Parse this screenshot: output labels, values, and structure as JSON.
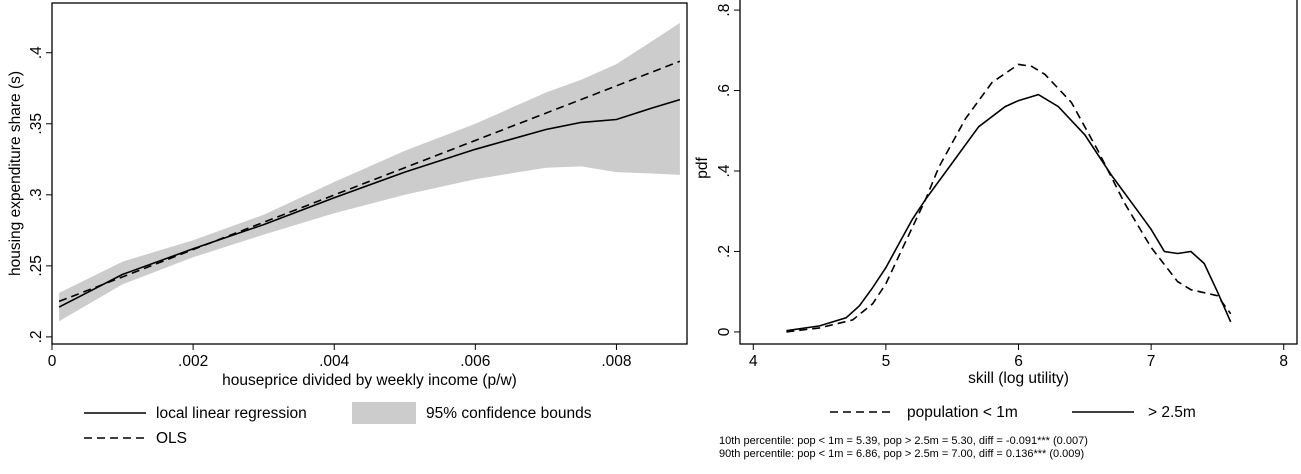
{
  "chart_data": [
    {
      "type": "line",
      "title": "",
      "xlabel": "houseprice divided by weekly income (p/w)",
      "ylabel": "housing expenditure share (s)",
      "xlim": [
        0,
        0.009
      ],
      "ylim": [
        0.195,
        0.435
      ],
      "x_ticks": [
        0,
        0.002,
        0.004,
        0.006,
        0.008
      ],
      "x_tick_labels": [
        "0",
        ".002",
        ".004",
        ".006",
        ".008"
      ],
      "y_ticks": [
        0.2,
        0.25,
        0.3,
        0.35,
        0.4
      ],
      "y_tick_labels": [
        ".2",
        ".25",
        ".3",
        ".35",
        ".4"
      ],
      "grid": false,
      "legend_position": "bottom",
      "band": {
        "name": "95% confidence bounds",
        "color": "#cccccc",
        "x": [
          0.0001,
          0.001,
          0.002,
          0.003,
          0.004,
          0.005,
          0.006,
          0.007,
          0.0075,
          0.008,
          0.0085,
          0.0089
        ],
        "lower": [
          0.211,
          0.237,
          0.256,
          0.272,
          0.287,
          0.3,
          0.311,
          0.319,
          0.32,
          0.316,
          0.315,
          0.314
        ],
        "upper": [
          0.231,
          0.253,
          0.268,
          0.286,
          0.309,
          0.331,
          0.35,
          0.372,
          0.381,
          0.392,
          0.408,
          0.421
        ]
      },
      "series": [
        {
          "name": "local linear regression",
          "style": "solid",
          "x": [
            0.0001,
            0.001,
            0.002,
            0.003,
            0.004,
            0.005,
            0.006,
            0.007,
            0.0075,
            0.008,
            0.0085,
            0.0089
          ],
          "y": [
            0.221,
            0.244,
            0.262,
            0.279,
            0.298,
            0.316,
            0.332,
            0.346,
            0.351,
            0.353,
            0.361,
            0.367
          ]
        },
        {
          "name": "OLS",
          "style": "dash",
          "x": [
            0.0001,
            0.0089
          ],
          "y": [
            0.225,
            0.394
          ]
        }
      ]
    },
    {
      "type": "line",
      "title": "",
      "xlabel": "skill (log utility)",
      "ylabel": "pdf",
      "xlim": [
        3.9,
        8.1
      ],
      "ylim": [
        -0.03,
        0.83
      ],
      "x_ticks": [
        4,
        5,
        6,
        7,
        8
      ],
      "x_tick_labels": [
        "4",
        "5",
        "6",
        "7",
        "8"
      ],
      "y_ticks": [
        0,
        0.2,
        0.4,
        0.6,
        0.8
      ],
      "y_tick_labels": [
        "0",
        ".2",
        ".4",
        ".6",
        ".8"
      ],
      "grid": false,
      "legend_position": "bottom",
      "series": [
        {
          "name": "population < 1m",
          "style": "dash",
          "x": [
            4.25,
            4.5,
            4.75,
            4.9,
            5.0,
            5.1,
            5.2,
            5.3,
            5.4,
            5.6,
            5.8,
            6.0,
            6.1,
            6.2,
            6.4,
            6.6,
            6.8,
            7.0,
            7.2,
            7.3,
            7.5,
            7.6
          ],
          "y": [
            0.0,
            0.01,
            0.03,
            0.07,
            0.12,
            0.19,
            0.26,
            0.33,
            0.41,
            0.53,
            0.62,
            0.665,
            0.66,
            0.64,
            0.57,
            0.45,
            0.32,
            0.21,
            0.125,
            0.105,
            0.09,
            0.045
          ]
        },
        {
          "name": "> 2.5m",
          "style": "solid",
          "x": [
            4.25,
            4.5,
            4.7,
            4.8,
            4.9,
            5.0,
            5.1,
            5.2,
            5.3,
            5.5,
            5.7,
            5.9,
            6.0,
            6.1,
            6.15,
            6.3,
            6.5,
            6.7,
            6.9,
            7.0,
            7.1,
            7.2,
            7.3,
            7.4,
            7.5,
            7.6
          ],
          "y": [
            0.003,
            0.015,
            0.035,
            0.065,
            0.11,
            0.16,
            0.22,
            0.28,
            0.33,
            0.42,
            0.51,
            0.56,
            0.575,
            0.585,
            0.59,
            0.56,
            0.49,
            0.39,
            0.3,
            0.255,
            0.2,
            0.195,
            0.2,
            0.17,
            0.1,
            0.025
          ]
        }
      ],
      "notes": [
        "10th percentile: pop < 1m = 5.39, pop > 2.5m = 5.30, diff = -0.091*** (0.007)",
        "90th percentile: pop < 1m = 6.86, pop > 2.5m = 7.00, diff = 0.136*** (0.009)"
      ]
    }
  ]
}
